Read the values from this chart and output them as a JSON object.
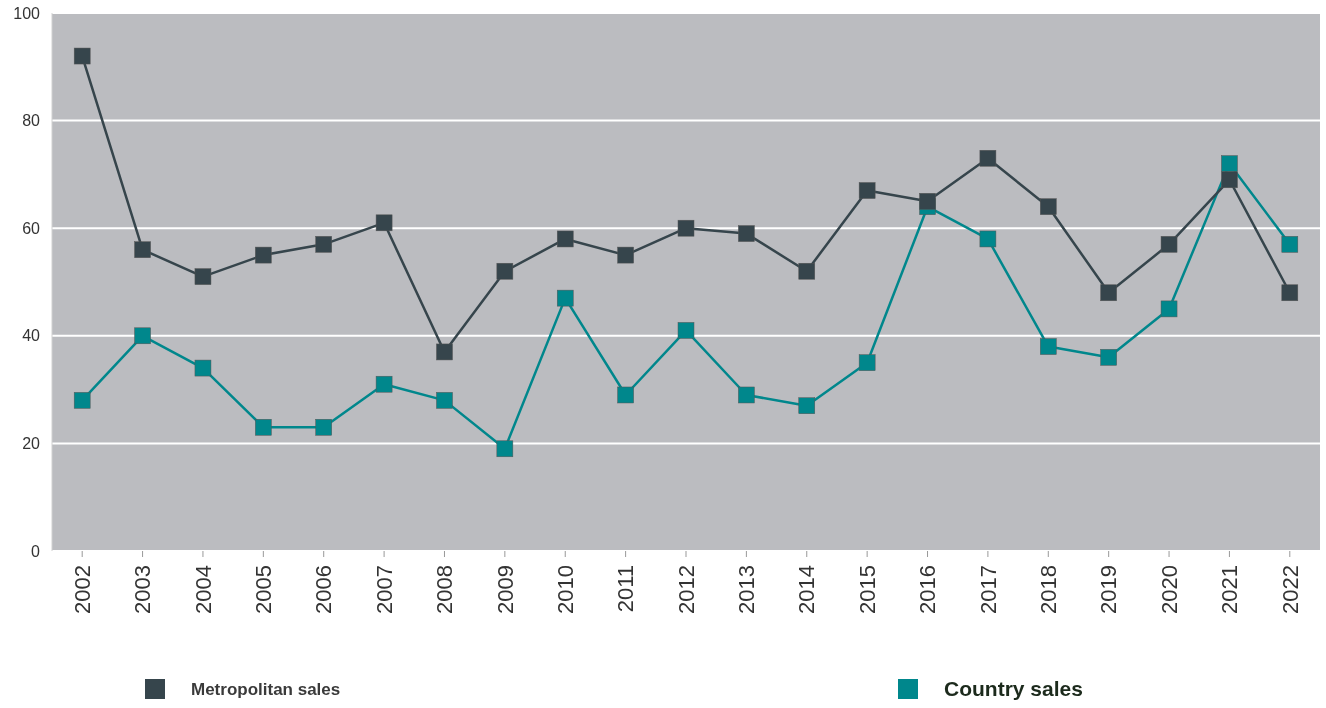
{
  "chart_data": {
    "type": "line",
    "categories": [
      "2002",
      "2003",
      "2004",
      "2005",
      "2006",
      "2007",
      "2008",
      "2009",
      "2010",
      "2011",
      "2012",
      "2013",
      "2014",
      "2015",
      "2016",
      "2017",
      "2018",
      "2019",
      "2020",
      "2021",
      "2022"
    ],
    "series": [
      {
        "name": "Metropolitan sales",
        "color": "#36454c",
        "values": [
          92,
          56,
          51,
          55,
          57,
          61,
          37,
          52,
          58,
          55,
          60,
          59,
          52,
          67,
          65,
          73,
          64,
          48,
          57,
          69,
          48
        ]
      },
      {
        "name": "Country sales",
        "color": "#00878c",
        "values": [
          28,
          40,
          34,
          23,
          23,
          31,
          28,
          19,
          47,
          29,
          41,
          29,
          27,
          35,
          64,
          58,
          38,
          36,
          45,
          72,
          57
        ]
      }
    ],
    "ylim": [
      0,
      100
    ],
    "yticks": [
      0,
      20,
      40,
      60,
      80,
      100
    ],
    "grid": "y",
    "legend": "bottom",
    "marker": "square",
    "line_style": "solid"
  }
}
